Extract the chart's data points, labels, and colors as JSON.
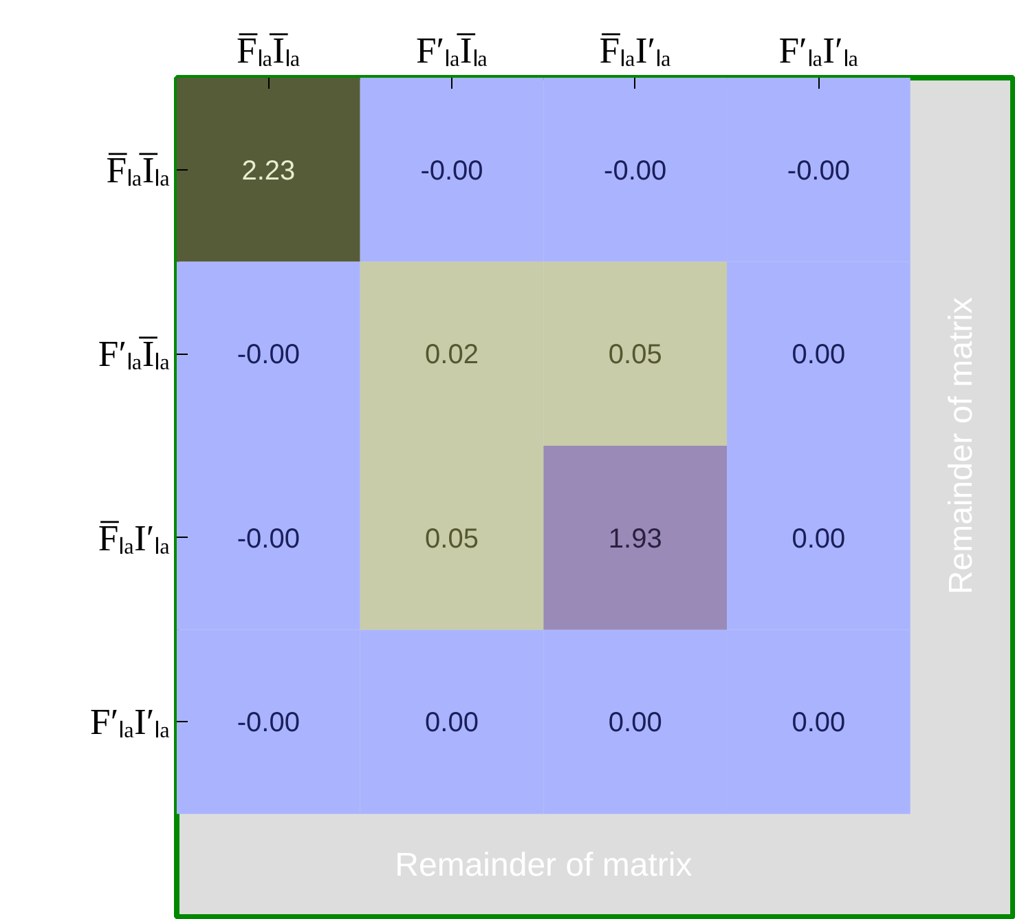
{
  "chart_data": {
    "type": "heatmap",
    "categories": [
      "F̅ₗₐI̅ₗₐ",
      "F′ₗₐI̅ₗₐ",
      "F̅ₗₐI′ₗₐ",
      "F′ₗₐI′ₗₐ"
    ],
    "y_categories": [
      "F̅ₗₐI̅ₗₐ",
      "F′ₗₐI̅ₗₐ",
      "F̅ₗₐI′ₗₐ",
      "F′ₗₐI′ₗₐ"
    ],
    "cells": [
      [
        2.23,
        0,
        0,
        0
      ],
      [
        0,
        0.02,
        0.05,
        0.0
      ],
      [
        0,
        0.05,
        1.93,
        0.0
      ],
      [
        0,
        0.0,
        0.0,
        0.0
      ]
    ],
    "cell_labels": [
      [
        "2.23",
        "-0.00",
        "-0.00",
        "-0.00"
      ],
      [
        "-0.00",
        "0.02",
        "0.05",
        "0.00"
      ],
      [
        "-0.00",
        "0.05",
        "1.93",
        "0.00"
      ],
      [
        "-0.00",
        "0.00",
        "0.00",
        "0.00"
      ]
    ],
    "colors": [
      [
        "#575c38",
        "#aab4fe",
        "#aab4fe",
        "#aab4fe"
      ],
      [
        "#aab4fe",
        "#c8cca8",
        "#c8cca8",
        "#aab4fe"
      ],
      [
        "#aab4fe",
        "#c8cca8",
        "#9a8ab8",
        "#aab4fe"
      ],
      [
        "#aab4fe",
        "#aab4fe",
        "#aab4fe",
        "#aab4fe"
      ]
    ],
    "annotations": [
      "Remainder of matrix",
      "Remainder of matrix"
    ]
  }
}
